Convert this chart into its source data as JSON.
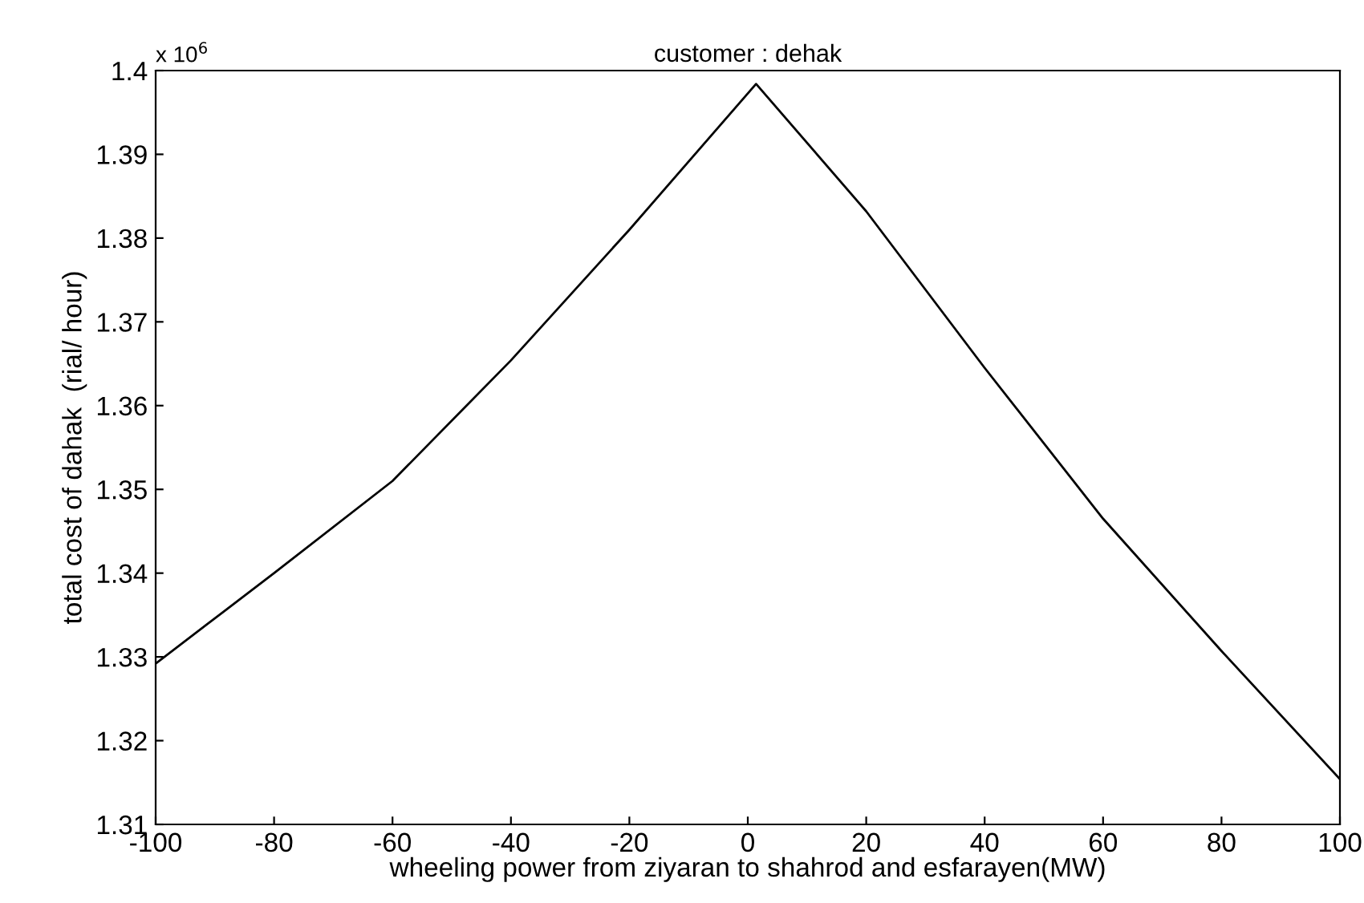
{
  "chart_data": {
    "type": "line",
    "title": "customer : dehak",
    "xlabel": "wheeling power from ziyaran to shahrod and esfarayen(MW)",
    "ylabel": "total cost of dahak  (rial/ hour)",
    "annotations": [
      "x 10$^{6}$"
    ],
    "x": [
      -100,
      -80,
      -60,
      -40,
      -20,
      1.4,
      20,
      40,
      60,
      80,
      100
    ],
    "series": [
      {
        "color": "#000000",
        "values": [
          1.3292,
          1.34,
          1.351,
          1.3654,
          1.381,
          1.3984,
          1.3832,
          1.3645,
          1.3465,
          1.3307,
          1.3154
        ]
      }
    ],
    "xlim": [
      -100,
      100
    ],
    "xticks": [
      -100,
      -80,
      -60,
      -40,
      -20,
      0,
      20,
      40,
      60,
      80,
      100
    ],
    "ylim": [
      1.31,
      1.4
    ],
    "yticks": [
      1.31,
      1.32,
      1.33,
      1.34,
      1.35,
      1.36,
      1.37,
      1.38,
      1.39,
      1.4
    ],
    "grid": false,
    "legend": false
  }
}
